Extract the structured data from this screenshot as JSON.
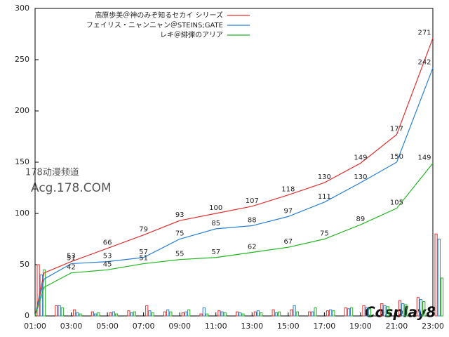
{
  "chart_data": {
    "type": "line",
    "xlim": [
      1,
      23
    ],
    "ylim": [
      0,
      300
    ],
    "yticks": [
      0,
      50,
      100,
      150,
      200,
      250,
      300
    ],
    "xticks": [
      {
        "value": 1,
        "label": "01:00"
      },
      {
        "value": 3,
        "label": "03:00"
      },
      {
        "value": 5,
        "label": "05:00"
      },
      {
        "value": 7,
        "label": "07:00"
      },
      {
        "value": 9,
        "label": "09:00"
      },
      {
        "value": 11,
        "label": "11:00"
      },
      {
        "value": 13,
        "label": "13:00"
      },
      {
        "value": 15,
        "label": "15:00"
      },
      {
        "value": 17,
        "label": "17:00"
      },
      {
        "value": 19,
        "label": "19:00"
      },
      {
        "value": 21,
        "label": "21:00"
      },
      {
        "value": 23,
        "label": "23:00"
      }
    ],
    "legend": "upper right",
    "series": [
      {
        "name": "高原歩美＠神のみぞ知るセカイ シリーズ",
        "color": "#e03030",
        "x": [
          1,
          1.5,
          3,
          5,
          7,
          9,
          11,
          13,
          15,
          17,
          19,
          21,
          23
        ],
        "values": [
          0,
          42,
          53,
          66,
          79,
          93,
          100,
          107,
          118,
          130,
          149,
          177,
          271
        ],
        "value_labels": [
          null,
          null,
          "53",
          "66",
          "79",
          "93",
          "100",
          "107",
          "118",
          "130",
          "149",
          "177",
          "271"
        ]
      },
      {
        "name": "フェイリス・ニャンニャン＠STEINS;GATE",
        "color": "#2a7fd4",
        "x": [
          1,
          1.5,
          3,
          5,
          7,
          9,
          11,
          13,
          15,
          17,
          19,
          21,
          23
        ],
        "values": [
          0,
          36,
          51,
          53,
          57,
          75,
          85,
          88,
          97,
          111,
          130,
          150,
          242
        ],
        "value_labels": [
          null,
          null,
          "51",
          "53",
          "57",
          "75",
          "85",
          "88",
          "97",
          "111",
          "130",
          "150",
          "242"
        ]
      },
      {
        "name": "レキ＠緋弾のアリア",
        "color": "#22b522",
        "x": [
          1,
          1.5,
          3,
          5,
          7,
          9,
          11,
          13,
          15,
          17,
          19,
          21,
          23
        ],
        "values": [
          0,
          28,
          42,
          45,
          51,
          55,
          57,
          62,
          67,
          75,
          89,
          105,
          149
        ],
        "value_labels": [
          null,
          null,
          "42",
          "45",
          "51",
          "55",
          "57",
          "62",
          "67",
          "75",
          "89",
          "105",
          "149"
        ]
      }
    ],
    "bars": {
      "x": [
        1,
        2,
        3,
        4,
        5,
        6,
        7,
        8,
        9,
        10,
        11,
        12,
        13,
        14,
        15,
        16,
        17,
        18,
        19,
        20,
        21,
        22,
        23
      ],
      "series": [
        {
          "color": "#e03030",
          "values": [
            50,
            10,
            6,
            4,
            3,
            5,
            10,
            4,
            3,
            2,
            5,
            4,
            4,
            6,
            6,
            4,
            5,
            8,
            10,
            12,
            15,
            18,
            80
          ]
        },
        {
          "color": "#2a7fd4",
          "values": [
            40,
            10,
            3,
            2,
            4,
            3,
            5,
            6,
            4,
            8,
            4,
            3,
            5,
            3,
            10,
            4,
            6,
            7,
            8,
            10,
            12,
            16,
            75
          ]
        },
        {
          "color": "#22b522",
          "values": [
            45,
            8,
            2,
            3,
            2,
            4,
            3,
            4,
            6,
            2,
            3,
            2,
            3,
            4,
            4,
            8,
            5,
            8,
            7,
            9,
            11,
            14,
            37
          ]
        }
      ]
    },
    "watermarks": [
      "178动漫频道",
      "Acg.178.COM",
      "Cosplay8"
    ]
  }
}
